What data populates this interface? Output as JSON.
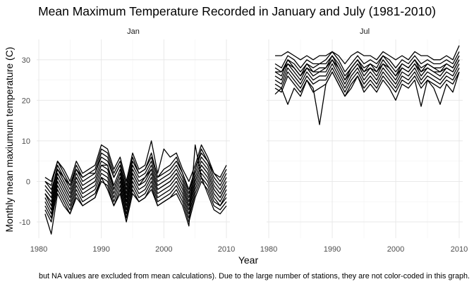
{
  "chart_data": {
    "type": "line",
    "title": "Mean Maximum Temperature Recorded in January and July (1981-2010)",
    "xlabel": "Year",
    "ylabel": "Monthly mean maxiumum temperature (C)",
    "caption": "but NA values are excluded from mean calculations). Due to the large number of stations, they are not color-coded in this graph.",
    "xlim": [
      1980,
      2010
    ],
    "ylim": [
      -14,
      35
    ],
    "x_ticks": [
      1980,
      1990,
      2000,
      2010
    ],
    "y_ticks": [
      -10,
      0,
      10,
      20,
      30
    ],
    "grid": true,
    "legend": "none",
    "line_color": "#000000",
    "x": [
      1981,
      1982,
      1983,
      1984,
      1985,
      1986,
      1987,
      1988,
      1989,
      1990,
      1991,
      1992,
      1993,
      1994,
      1995,
      1996,
      1997,
      1998,
      1999,
      2000,
      2001,
      2002,
      2003,
      2004,
      2005,
      2006,
      2007,
      2008,
      2009,
      2010
    ],
    "panels": [
      {
        "name": "Jan",
        "series": [
          {
            "values": [
              -3,
              -6,
              2,
              -1,
              -4,
              1,
              -2,
              -1,
              0,
              4,
              3,
              -2,
              2,
              -5,
              2,
              -1,
              0,
              3,
              -2,
              -1,
              0,
              2,
              -1,
              -6,
              0,
              4,
              2,
              -2,
              -4,
              -1
            ]
          },
          {
            "values": [
              -1,
              -3,
              4,
              1,
              -2,
              3,
              0,
              1,
              2,
              6,
              5,
              1,
              4,
              -3,
              4,
              1,
              2,
              5,
              0,
              1,
              2,
              4,
              1,
              -4,
              2,
              6,
              4,
              0,
              -2,
              1
            ]
          },
          {
            "values": [
              -5,
              -8,
              0,
              -3,
              -6,
              -1,
              -4,
              -3,
              -2,
              2,
              1,
              -4,
              0,
              -7,
              0,
              -3,
              -2,
              1,
              -4,
              -3,
              -2,
              0,
              -3,
              -8,
              -2,
              2,
              0,
              -4,
              -6,
              -3
            ]
          },
          {
            "values": [
              0,
              -1,
              5,
              2,
              -1,
              4,
              1,
              2,
              3,
              8,
              7,
              2,
              5,
              -1,
              6,
              2,
              3,
              6,
              1,
              2,
              3,
              5,
              2,
              -2,
              3,
              7,
              5,
              1,
              -1,
              2
            ]
          },
          {
            "values": [
              -7,
              -10,
              -2,
              -5,
              -8,
              -3,
              -6,
              -5,
              -4,
              0,
              -1,
              -6,
              -2,
              -9,
              -2,
              -5,
              -4,
              -1,
              -6,
              -5,
              -4,
              -2,
              -5,
              -10,
              -4,
              0,
              -2,
              -6,
              -7,
              -5
            ]
          },
          {
            "values": [
              -2,
              -4,
              3,
              0,
              -3,
              2,
              -1,
              0,
              1,
              5,
              4,
              -1,
              3,
              -4,
              3,
              0,
              1,
              4,
              -1,
              0,
              1,
              3,
              0,
              -5,
              1,
              5,
              3,
              -1,
              -3,
              0
            ]
          },
          {
            "values": [
              1,
              0,
              5,
              3,
              0,
              5,
              2,
              3,
              4,
              9,
              8,
              3,
              6,
              0,
              7,
              3,
              4,
              10,
              2,
              8,
              6,
              7,
              3,
              0,
              4,
              9,
              6,
              2,
              0,
              3
            ]
          },
          {
            "values": [
              -4,
              -7,
              1,
              -2,
              -5,
              0,
              -3,
              -2,
              -1,
              3,
              2,
              -3,
              1,
              -6,
              1,
              -2,
              -1,
              2,
              -3,
              -2,
              -1,
              1,
              -2,
              -7,
              -1,
              3,
              1,
              -3,
              -5,
              -2
            ]
          },
          {
            "values": [
              -8,
              -13,
              -3,
              -6,
              -8,
              -4,
              -6,
              -5,
              -4,
              1,
              -2,
              -6,
              -3,
              -10,
              -3,
              -5,
              -4,
              -2,
              -6,
              -5,
              -4,
              -3,
              -6,
              -11,
              9,
              1,
              -3,
              -7,
              -8,
              -6
            ]
          },
          {
            "values": [
              0,
              -2,
              3,
              1,
              -1,
              3,
              1,
              2,
              2,
              7,
              6,
              1,
              4,
              -2,
              5,
              2,
              3,
              7,
              1,
              3,
              4,
              6,
              2,
              -3,
              3,
              8,
              5,
              2,
              1,
              4
            ]
          },
          {
            "values": [
              -6,
              -9,
              -1,
              -4,
              -7,
              -2,
              -5,
              -4,
              -3,
              1,
              0,
              -5,
              -1,
              -8,
              -1,
              -4,
              -3,
              0,
              -5,
              -4,
              -3,
              -1,
              -4,
              -9,
              -3,
              1,
              -1,
              -5,
              -6,
              -4
            ]
          },
          {
            "values": [
              -3,
              -5,
              2,
              -1,
              -4,
              1,
              -2,
              -1,
              0,
              4,
              4,
              -2,
              2,
              -5,
              2,
              -1,
              1,
              3,
              -2,
              -1,
              0,
              2,
              -1,
              -6,
              0,
              4,
              2,
              -2,
              -4,
              -1
            ]
          }
        ]
      },
      {
        "name": "Jul",
        "series": [
          {
            "values": [
              27,
              26,
              30,
              28,
              26,
              29,
              27,
              28,
              28,
              31,
              28,
              25,
              28,
              30,
              27,
              29,
              27,
              30,
              28,
              26,
              29,
              28,
              30,
              27,
              29,
              28,
              27,
              29,
              28,
              31
            ]
          },
          {
            "values": [
              25,
              24,
              28,
              26,
              24,
              27,
              25,
              26,
              26,
              29,
              26,
              23,
              26,
              28,
              25,
              27,
              25,
              28,
              26,
              24,
              27,
              26,
              28,
              25,
              27,
              26,
              25,
              27,
              26,
              29
            ]
          },
          {
            "values": [
              29,
              28,
              31,
              30,
              28,
              30,
              29,
              29,
              30,
              32,
              30,
              27,
              29,
              31,
              29,
              30,
              29,
              31,
              30,
              28,
              30,
              29,
              31,
              29,
              30,
              29,
              29,
              30,
              29,
              32
            ]
          },
          {
            "values": [
              23,
              22,
              26,
              24,
              22,
              25,
              23,
              14,
              24,
              27,
              24,
              21,
              24,
              26,
              23,
              25,
              23,
              26,
              24,
              22,
              25,
              24,
              26,
              23,
              25,
              24,
              23,
              25,
              24,
              27
            ]
          },
          {
            "values": [
              28,
              27,
              30,
              29,
              27,
              29,
              28,
              29,
              29,
              31,
              29,
              26,
              28,
              30,
              28,
              29,
              28,
              31,
              29,
              27,
              29,
              28,
              30,
              28,
              29,
              28,
              28,
              29,
              28,
              31
            ]
          },
          {
            "values": [
              26,
              25,
              29,
              27,
              25,
              28,
              26,
              27,
              27,
              30,
              27,
              24,
              27,
              29,
              26,
              28,
              26,
              29,
              27,
              25,
              28,
              27,
              29,
              26,
              28,
              27,
              26,
              28,
              27,
              30
            ]
          },
          {
            "values": [
              21.5,
              23,
              19,
              23,
              21,
              25,
              22,
              23,
              24,
              27,
              24,
              21,
              23,
              26,
              22,
              24,
              22,
              25,
              23,
              20,
              24,
              23,
              25,
              18.5,
              25,
              23,
              19,
              24,
              22,
              27
            ]
          },
          {
            "values": [
              31,
              31,
              32,
              31,
              30,
              31,
              30,
              31,
              31,
              32,
              31,
              29,
              31,
              32,
              31,
              31,
              30,
              32,
              31,
              30,
              31,
              30,
              32,
              31,
              31,
              30,
              30,
              31,
              30,
              33.5
            ]
          },
          {
            "values": [
              24,
              23,
              27,
              25,
              23,
              26,
              24,
              25,
              25,
              28,
              25,
              22,
              25,
              27,
              24,
              26,
              24,
              27,
              25,
              23,
              26,
              25,
              27,
              24,
              26,
              25,
              24,
              26,
              25,
              28
            ]
          },
          {
            "values": [
              27,
              27,
              29,
              28,
              26,
              28,
              27,
              27,
              28,
              30,
              28,
              25,
              27,
              29,
              27,
              28,
              27,
              29,
              28,
              26,
              28,
              27,
              29,
              27,
              28,
              27,
              27,
              28,
              27,
              30
            ]
          }
        ]
      }
    ]
  }
}
